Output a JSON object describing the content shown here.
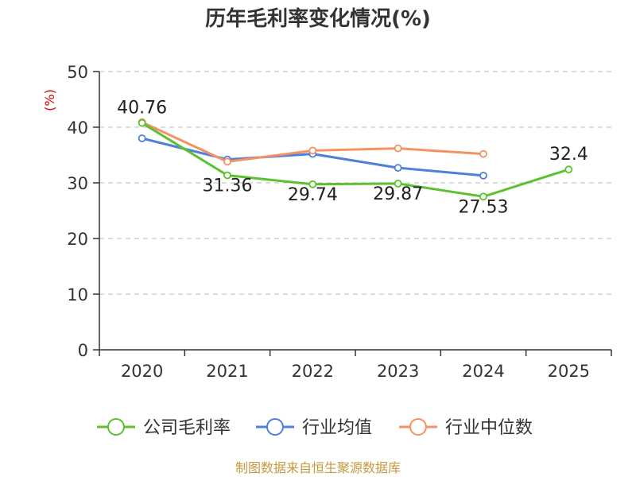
{
  "chart_data": {
    "type": "line",
    "title": "历年毛利率变化情况(%)",
    "ylabel": "(%)",
    "xlabel": "",
    "categories": [
      "2020",
      "2021",
      "2022",
      "2023",
      "2024",
      "2025"
    ],
    "ylim": [
      0,
      50
    ],
    "yticks": [
      0,
      10,
      20,
      30,
      40,
      50
    ],
    "grid": true,
    "legend_position": "bottom",
    "series": [
      {
        "name": "公司毛利率",
        "color": "#5cc12e",
        "values": [
          40.76,
          31.36,
          29.74,
          29.87,
          27.53,
          32.4
        ],
        "labels": [
          "40.76",
          "31.36",
          "29.74",
          "29.87",
          "27.53",
          "32.4"
        ]
      },
      {
        "name": "行业均值",
        "color": "#4f7fdb",
        "values": [
          38.0,
          34.2,
          35.2,
          32.7,
          31.3,
          null
        ]
      },
      {
        "name": "行业中位数",
        "color": "#f39262",
        "values": [
          40.9,
          33.8,
          35.8,
          36.2,
          35.2,
          null
        ]
      }
    ]
  },
  "footer": {
    "source": "制图数据来自恒生聚源数据库"
  },
  "colors": {
    "grid": "#c8c8c8",
    "axis": "#333333",
    "ylabel": "#d00000",
    "source": "#c49a3c"
  }
}
